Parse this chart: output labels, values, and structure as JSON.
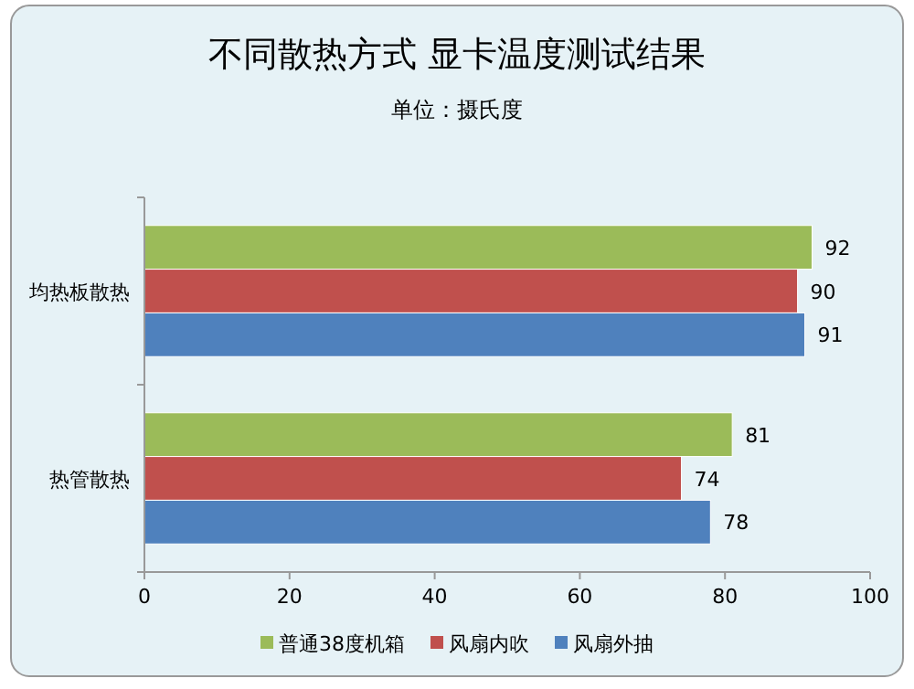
{
  "chart_data": {
    "type": "bar",
    "orientation": "horizontal",
    "title": "不同散热方式 显卡温度测试结果",
    "subtitle": "单位：摄氏度",
    "categories": [
      "均热板散热",
      "热管散热"
    ],
    "series": [
      {
        "name": "普通38度机箱",
        "color": "#9bbb59",
        "values": [
          92,
          81
        ]
      },
      {
        "name": "风扇内吹",
        "color": "#c0504d",
        "values": [
          90,
          74
        ]
      },
      {
        "name": "风扇外抽",
        "color": "#4f81bd",
        "values": [
          91,
          78
        ]
      }
    ],
    "xlim": [
      0,
      100
    ],
    "xticks": [
      0,
      20,
      40,
      60,
      80,
      100
    ],
    "data_labels": true,
    "grid": false,
    "legend": "bottom"
  }
}
